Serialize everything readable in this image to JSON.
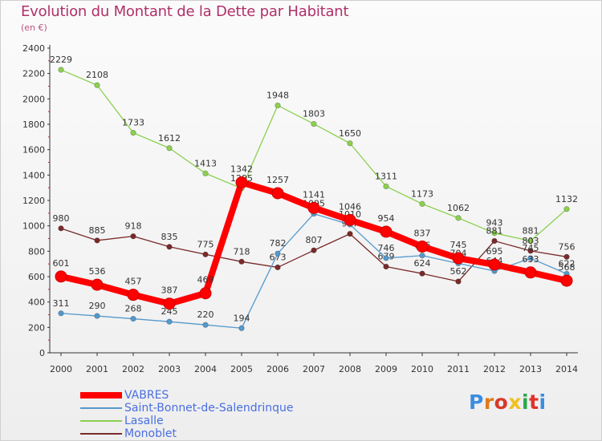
{
  "title": "Evolution du Montant de la Dette par Habitant",
  "subtitle": "(en €)",
  "logo": {
    "text": "Proxiti",
    "colors": [
      "#3a8de0",
      "#e07a1a",
      "#d63a2a",
      "#f0c020",
      "#2aa84a",
      "#e0302a",
      "#3a8de0"
    ]
  },
  "chart_data": {
    "type": "line",
    "title": "Evolution du Montant de la Dette par Habitant",
    "ylabel": "(en €)",
    "xlabel": "",
    "ylim": [
      0,
      2400
    ],
    "yticks": [
      0,
      200,
      400,
      600,
      800,
      1000,
      1200,
      1400,
      1600,
      1800,
      2000,
      2200,
      2400
    ],
    "grid": false,
    "legend": "bottom-left",
    "categories": [
      "2000",
      "2001",
      "2002",
      "2003",
      "2004",
      "2005",
      "2006",
      "2007",
      "2008",
      "2009",
      "2010",
      "2011",
      "2012",
      "2013",
      "2014"
    ],
    "series": [
      {
        "name": "Lasalle",
        "color": "#8cd050",
        "values": [
          2229,
          2108,
          1733,
          1612,
          1413,
          1295,
          1948,
          1803,
          1650,
          1311,
          1173,
          1062,
          943,
          881,
          1132
        ]
      },
      {
        "name": "Monoblet",
        "color": "#7a2a2a",
        "values": [
          980,
          885,
          918,
          835,
          775,
          718,
          673,
          807,
          937,
          679,
          624,
          562,
          881,
          803,
          756
        ]
      },
      {
        "name": "Saint-Bonnet-de-Salendrinque",
        "color": "#5599cc",
        "values": [
          311,
          290,
          268,
          245,
          220,
          194,
          782,
          1095,
          1010,
          746,
          766,
          704,
          644,
          745,
          622
        ]
      },
      {
        "name": "VABRES",
        "color": "#ff0000",
        "values": [
          601,
          536,
          457,
          387,
          469,
          1342,
          1257,
          1141,
          1046,
          954,
          837,
          745,
          695,
          633,
          568
        ]
      }
    ],
    "legend_order": [
      "VABRES",
      "Saint-Bonnet-de-Salendrinque",
      "Lasalle",
      "Monoblet"
    ]
  }
}
